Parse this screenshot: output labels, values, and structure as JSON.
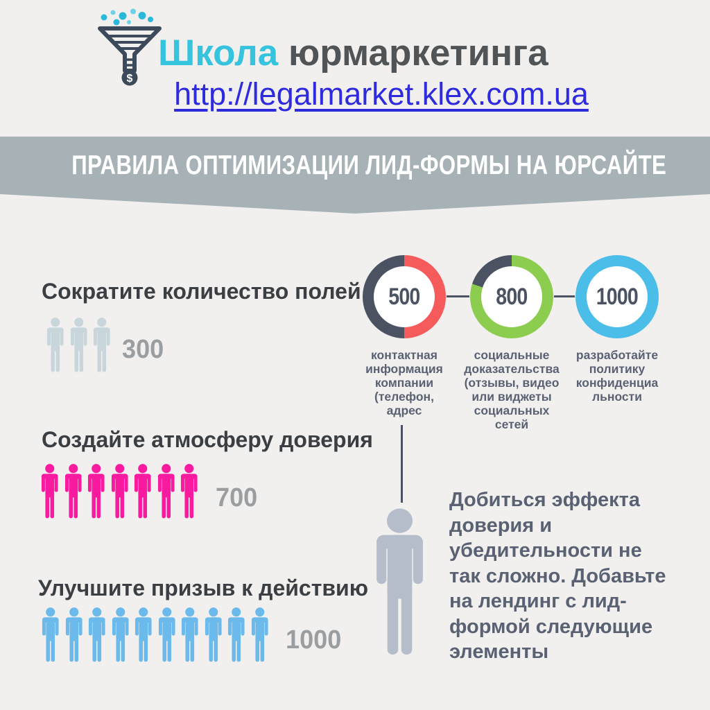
{
  "header": {
    "logo_icon": "funnel-dollar-icon",
    "title_accent": "Школа",
    "title_rest": " юрмаркетинга",
    "url": "http://legalmarket.klex.com.ua"
  },
  "banner": {
    "title": "ПРАВИЛА ОПТИМИЗАЦИИ ЛИД-ФОРМЫ НА ЮРСАЙТЕ"
  },
  "sections": [
    {
      "title": "Сократите количество полей",
      "value": "300",
      "people_count": 3,
      "people_color": "#c8d6dc"
    },
    {
      "title": "Создайте атмосферу доверия",
      "value": "700",
      "people_count": 7,
      "people_color": "#f81ba0"
    },
    {
      "title": "Улучшите призыв к действию",
      "value": "1000",
      "people_count": 10,
      "people_color": "#6cb9ec"
    }
  ],
  "donuts": [
    {
      "value": "500",
      "percent": 50,
      "color": "#f55b5b",
      "label": "контактная\nинформация\nкомпании\n(телефон,\nадрес"
    },
    {
      "value": "800",
      "percent": 80,
      "color": "#8ccc4e",
      "label": "социальные\nдоказательства\n(отзывы, видео\nили виджеты\nсоциальных\nсетей"
    },
    {
      "value": "1000",
      "percent": 100,
      "color": "#4bbde9",
      "label": "разработайте\nполитику\nконфиденциа\nльности"
    }
  ],
  "note": {
    "text": "Добиться эффекта\nдоверия и\nубедительности не\nтак сложно. Добавьте\nна лендинг с лид-\nформой следующие\nэлементы"
  },
  "colors": {
    "background": "#f1f0ee",
    "banner_bg": "#a7b2b6",
    "accent_cyan": "#35c3dd",
    "brand_gray": "#515456",
    "url_blue": "#2e2bdf",
    "donut_track": "#4b5363",
    "value_gray": "#9a9ea1",
    "note_text": "#596173",
    "silhouette": "#b6bdca"
  },
  "chart_data": [
    {
      "type": "pie",
      "subtype": "donut-progress",
      "title": "ПРАВИЛА ОПТИМИЗАЦИИ ЛИД-ФОРМЫ НА ЮРСАЙТЕ",
      "max": 1000,
      "series": [
        {
          "label": "контактная информация компании (телефон, адрес",
          "value": 500,
          "percent": 50,
          "color": "#f55b5b",
          "track_color": "#4b5363"
        },
        {
          "label": "социальные доказательства (отзывы, видео или виджеты социальных сетей",
          "value": 800,
          "percent": 80,
          "color": "#8ccc4e",
          "track_color": "#4b5363"
        },
        {
          "label": "разработайте политику конфиденциальности",
          "value": 1000,
          "percent": 100,
          "color": "#4bbde9",
          "track_color": "#4b5363"
        }
      ],
      "legend_position": "below"
    },
    {
      "type": "bar",
      "subtype": "pictogram",
      "categories": [
        "Сократите количество полей",
        "Создайте атмосферу доверия",
        "Улучшите призыв к действию"
      ],
      "values": [
        300,
        700,
        1000
      ],
      "pictogram_counts": [
        3,
        7,
        10
      ],
      "colors": [
        "#c8d6dc",
        "#f81ba0",
        "#6cb9ec"
      ],
      "xlabel": "",
      "ylabel": "",
      "ylim": [
        0,
        1000
      ]
    }
  ]
}
